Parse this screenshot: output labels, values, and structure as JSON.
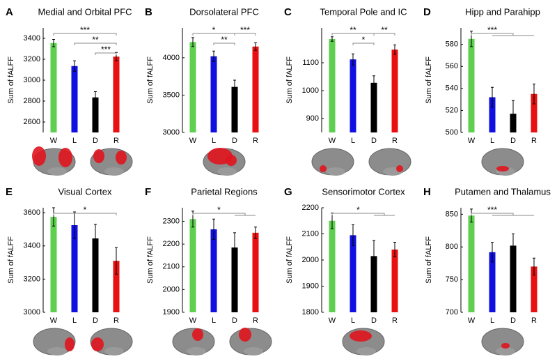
{
  "chart_data": [
    {
      "type": "bar",
      "panel": "A",
      "title": "Medial and Orbital PFC",
      "ylabel": "Sum of fALFF",
      "categories": [
        "W",
        "L",
        "D",
        "R"
      ],
      "colors": [
        "#5ecf4f",
        "#1010e0",
        "#000000",
        "#e81010"
      ],
      "values": [
        3355,
        3135,
        2835,
        3225
      ],
      "errors": [
        35,
        50,
        55,
        40
      ],
      "ylim": [
        2500,
        3500
      ],
      "yticks": [
        2600,
        2800,
        3000,
        3200,
        3400
      ],
      "brackets": [
        {
          "text": "***",
          "from": 0,
          "to": 3
        },
        {
          "text": "**",
          "from": 1,
          "to": 3
        },
        {
          "text": "***",
          "from": 2,
          "to": 3
        }
      ]
    },
    {
      "type": "bar",
      "panel": "B",
      "title": "Dorsolateral PFC",
      "ylabel": "Sum of fALFF",
      "categories": [
        "W",
        "L",
        "D",
        "R"
      ],
      "colors": [
        "#5ecf4f",
        "#1010e0",
        "#000000",
        "#e81010"
      ],
      "values": [
        4210,
        4020,
        3610,
        4150
      ],
      "errors": [
        60,
        70,
        90,
        50
      ],
      "ylim": [
        3000,
        4400
      ],
      "yticks": [
        3000,
        3500,
        4000
      ],
      "brackets": [
        {
          "text": "*",
          "from": 0,
          "to": 2
        },
        {
          "text": "**",
          "from": 1,
          "to": 2
        },
        {
          "text": "***",
          "from": 2,
          "to": 3
        }
      ]
    },
    {
      "type": "bar",
      "panel": "C",
      "title": "Temporal Pole and IC",
      "ylabel": "Sum of fALFF",
      "categories": [
        "W",
        "L",
        "D",
        "R"
      ],
      "colors": [
        "#5ecf4f",
        "#1010e0",
        "#000000",
        "#e81010"
      ],
      "values": [
        1185,
        1112,
        1028,
        1147
      ],
      "errors": [
        8,
        20,
        25,
        17
      ],
      "ylim": [
        850,
        1225
      ],
      "yticks": [
        900,
        1000,
        1100
      ],
      "brackets": [
        {
          "text": "**",
          "from": 0,
          "to": 2
        },
        {
          "text": "*",
          "from": 1,
          "to": 2
        },
        {
          "text": "**",
          "from": 2,
          "to": 3
        }
      ]
    },
    {
      "type": "bar",
      "panel": "D",
      "title": "Hipp and Parahipp",
      "ylabel": "Sum of fALFF",
      "categories": [
        "W",
        "L",
        "D",
        "R"
      ],
      "colors": [
        "#5ecf4f",
        "#1010e0",
        "#000000",
        "#e81010"
      ],
      "values": [
        585,
        532,
        517,
        535
      ],
      "errors": [
        7,
        9,
        12,
        9
      ],
      "ylim": [
        500,
        595
      ],
      "yticks": [
        500,
        520,
        540,
        560,
        580
      ],
      "brackets": [
        {
          "text": "***",
          "from": 0,
          "to": [
            1,
            2,
            3
          ]
        }
      ]
    },
    {
      "type": "bar",
      "panel": "E",
      "title": "Visual Cortex",
      "ylabel": "Sum of fALFF",
      "categories": [
        "W",
        "L",
        "D",
        "R"
      ],
      "colors": [
        "#5ecf4f",
        "#1010e0",
        "#000000",
        "#e81010"
      ],
      "values": [
        3575,
        3525,
        3445,
        3310
      ],
      "errors": [
        55,
        80,
        85,
        80
      ],
      "ylim": [
        3000,
        3630
      ],
      "yticks": [
        3000,
        3200,
        3400,
        3600
      ],
      "brackets": [
        {
          "text": "*",
          "from": 0,
          "to": 3
        }
      ]
    },
    {
      "type": "bar",
      "panel": "F",
      "title": "Parietal Regions",
      "ylabel": "Sum of fALFF",
      "categories": [
        "W",
        "L",
        "D",
        "R"
      ],
      "colors": [
        "#5ecf4f",
        "#1010e0",
        "#000000",
        "#e81010"
      ],
      "values": [
        2310,
        2265,
        2185,
        2250
      ],
      "errors": [
        35,
        45,
        65,
        25
      ],
      "ylim": [
        1900,
        2360
      ],
      "yticks": [
        1900,
        2000,
        2100,
        2200,
        2300
      ],
      "brackets": [
        {
          "text": "*",
          "from": 0,
          "to": [
            2,
            3
          ]
        }
      ]
    },
    {
      "type": "bar",
      "panel": "G",
      "title": "Sensorimotor Cortex",
      "ylabel": "Sum of fALFF",
      "categories": [
        "W",
        "L",
        "D",
        "R"
      ],
      "colors": [
        "#5ecf4f",
        "#1010e0",
        "#000000",
        "#e81010"
      ],
      "values": [
        2150,
        2095,
        2015,
        2040
      ],
      "errors": [
        30,
        40,
        60,
        28
      ],
      "ylim": [
        1800,
        2200
      ],
      "yticks": [
        1800,
        1900,
        2000,
        2100,
        2200
      ],
      "brackets": [
        {
          "text": "*",
          "from": 0,
          "to": [
            2,
            3
          ]
        }
      ]
    },
    {
      "type": "bar",
      "panel": "H",
      "title": "Putamen and Thalamus",
      "ylabel": "Sum of fALFF",
      "categories": [
        "W",
        "L",
        "D",
        "R"
      ],
      "colors": [
        "#5ecf4f",
        "#1010e0",
        "#000000",
        "#e81010"
      ],
      "values": [
        848,
        792,
        802,
        770
      ],
      "errors": [
        10,
        15,
        18,
        13
      ],
      "ylim": [
        700,
        860
      ],
      "yticks": [
        700,
        750,
        800,
        850
      ],
      "brackets": [
        {
          "text": "***",
          "from": 0,
          "to": [
            1,
            2,
            3
          ]
        }
      ]
    }
  ]
}
